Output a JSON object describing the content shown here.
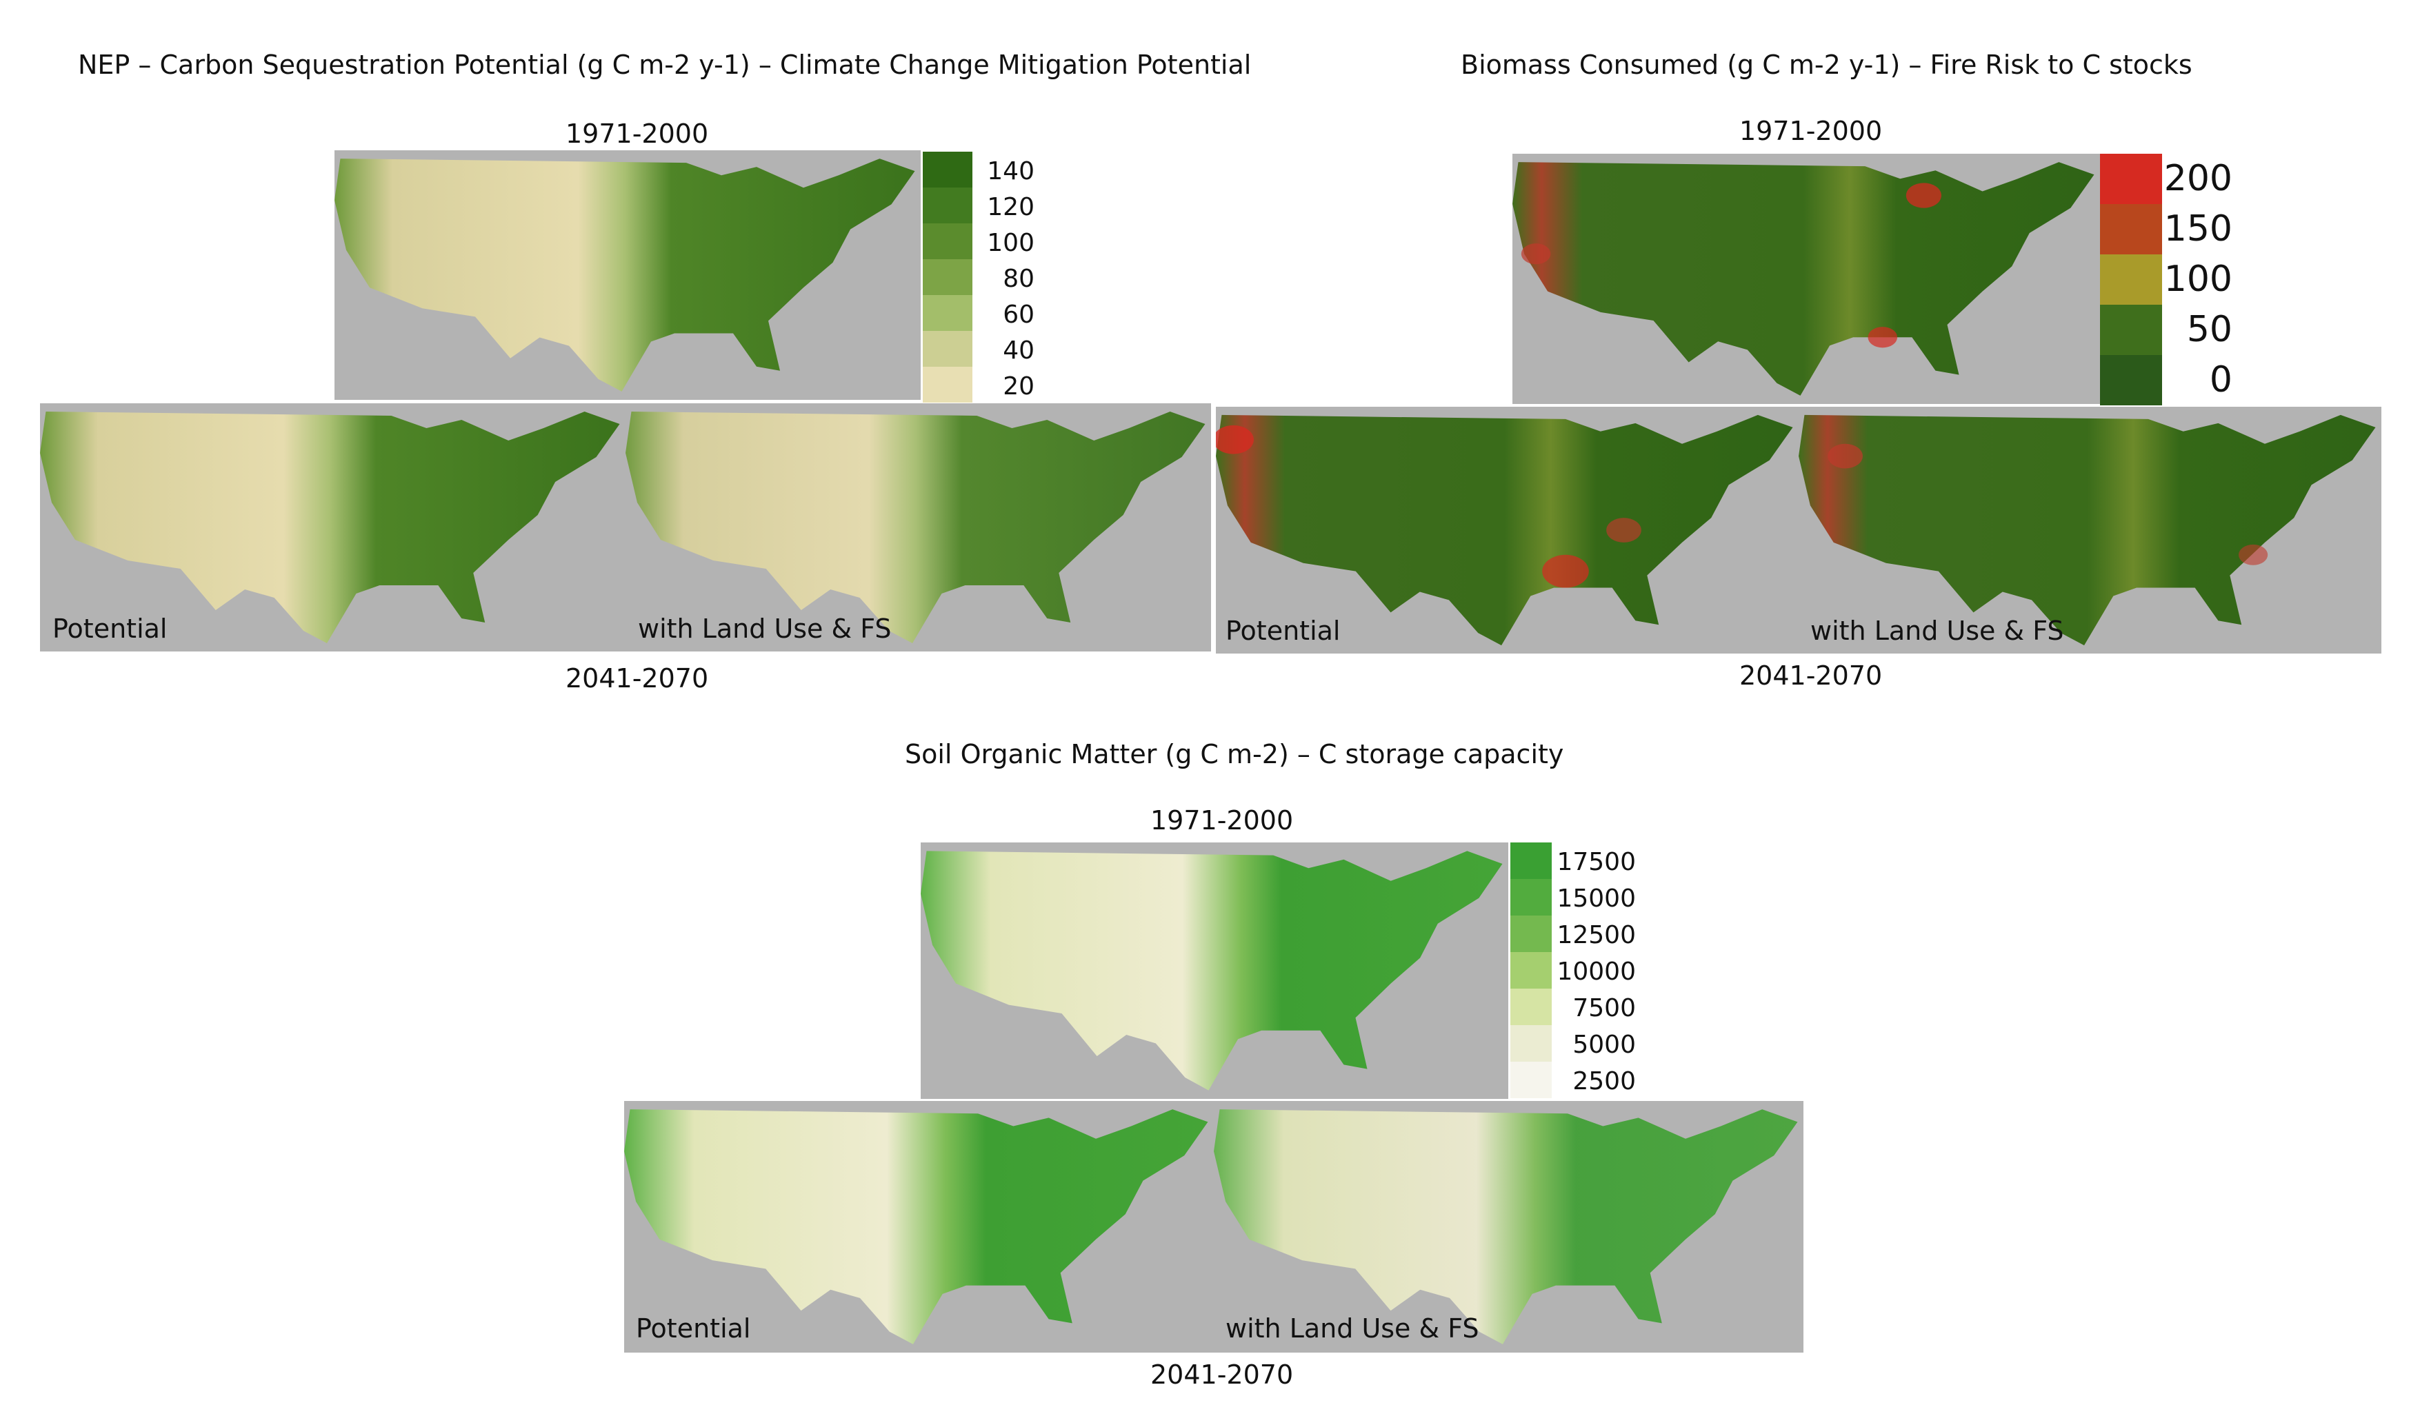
{
  "figures": {
    "nep": {
      "title": "NEP – Carbon Sequestration Potential (g C m-2 y-1) – Climate Change Mitigation Potential",
      "period_top": "1971-2000",
      "period_bottom": "2041-2070",
      "label_left": "Potential",
      "label_right": "with Land Use & FS",
      "legend_labels": [
        "140",
        "120",
        "100",
        "80",
        "60",
        "40",
        "20"
      ],
      "legend_colors": [
        "#2f6a14",
        "#427b20",
        "#5b8c2d",
        "#7da446",
        "#a3be6a",
        "#cccf93",
        "#e8dfb3"
      ]
    },
    "biomass": {
      "title": "Biomass Consumed (g C m-2 y-1) – Fire Risk to C stocks",
      "period_top": "1971-2000",
      "period_bottom": "2041-2070",
      "label_left": "Potential",
      "label_right": "with Land Use & FS",
      "legend_labels": [
        "200",
        "150",
        "100",
        "50",
        "0"
      ],
      "legend_colors": [
        "#d62a21",
        "#b8471d",
        "#a99b2a",
        "#3f6f1c",
        "#2b5a1a"
      ]
    },
    "soil": {
      "title": "Soil Organic Matter (g C m-2) – C storage capacity",
      "period_top": "1971-2000",
      "period_bottom": "2041-2070",
      "label_left": "Potential",
      "label_right": "with Land Use & FS",
      "legend_labels": [
        "17500",
        "15000",
        "12500",
        "10000",
        "7500",
        "5000",
        "2500"
      ],
      "legend_colors": [
        "#3aa033",
        "#52ac3e",
        "#74b94f",
        "#a5cf6f",
        "#d6e4a4",
        "#ebecd2",
        "#f6f5ed"
      ]
    }
  }
}
